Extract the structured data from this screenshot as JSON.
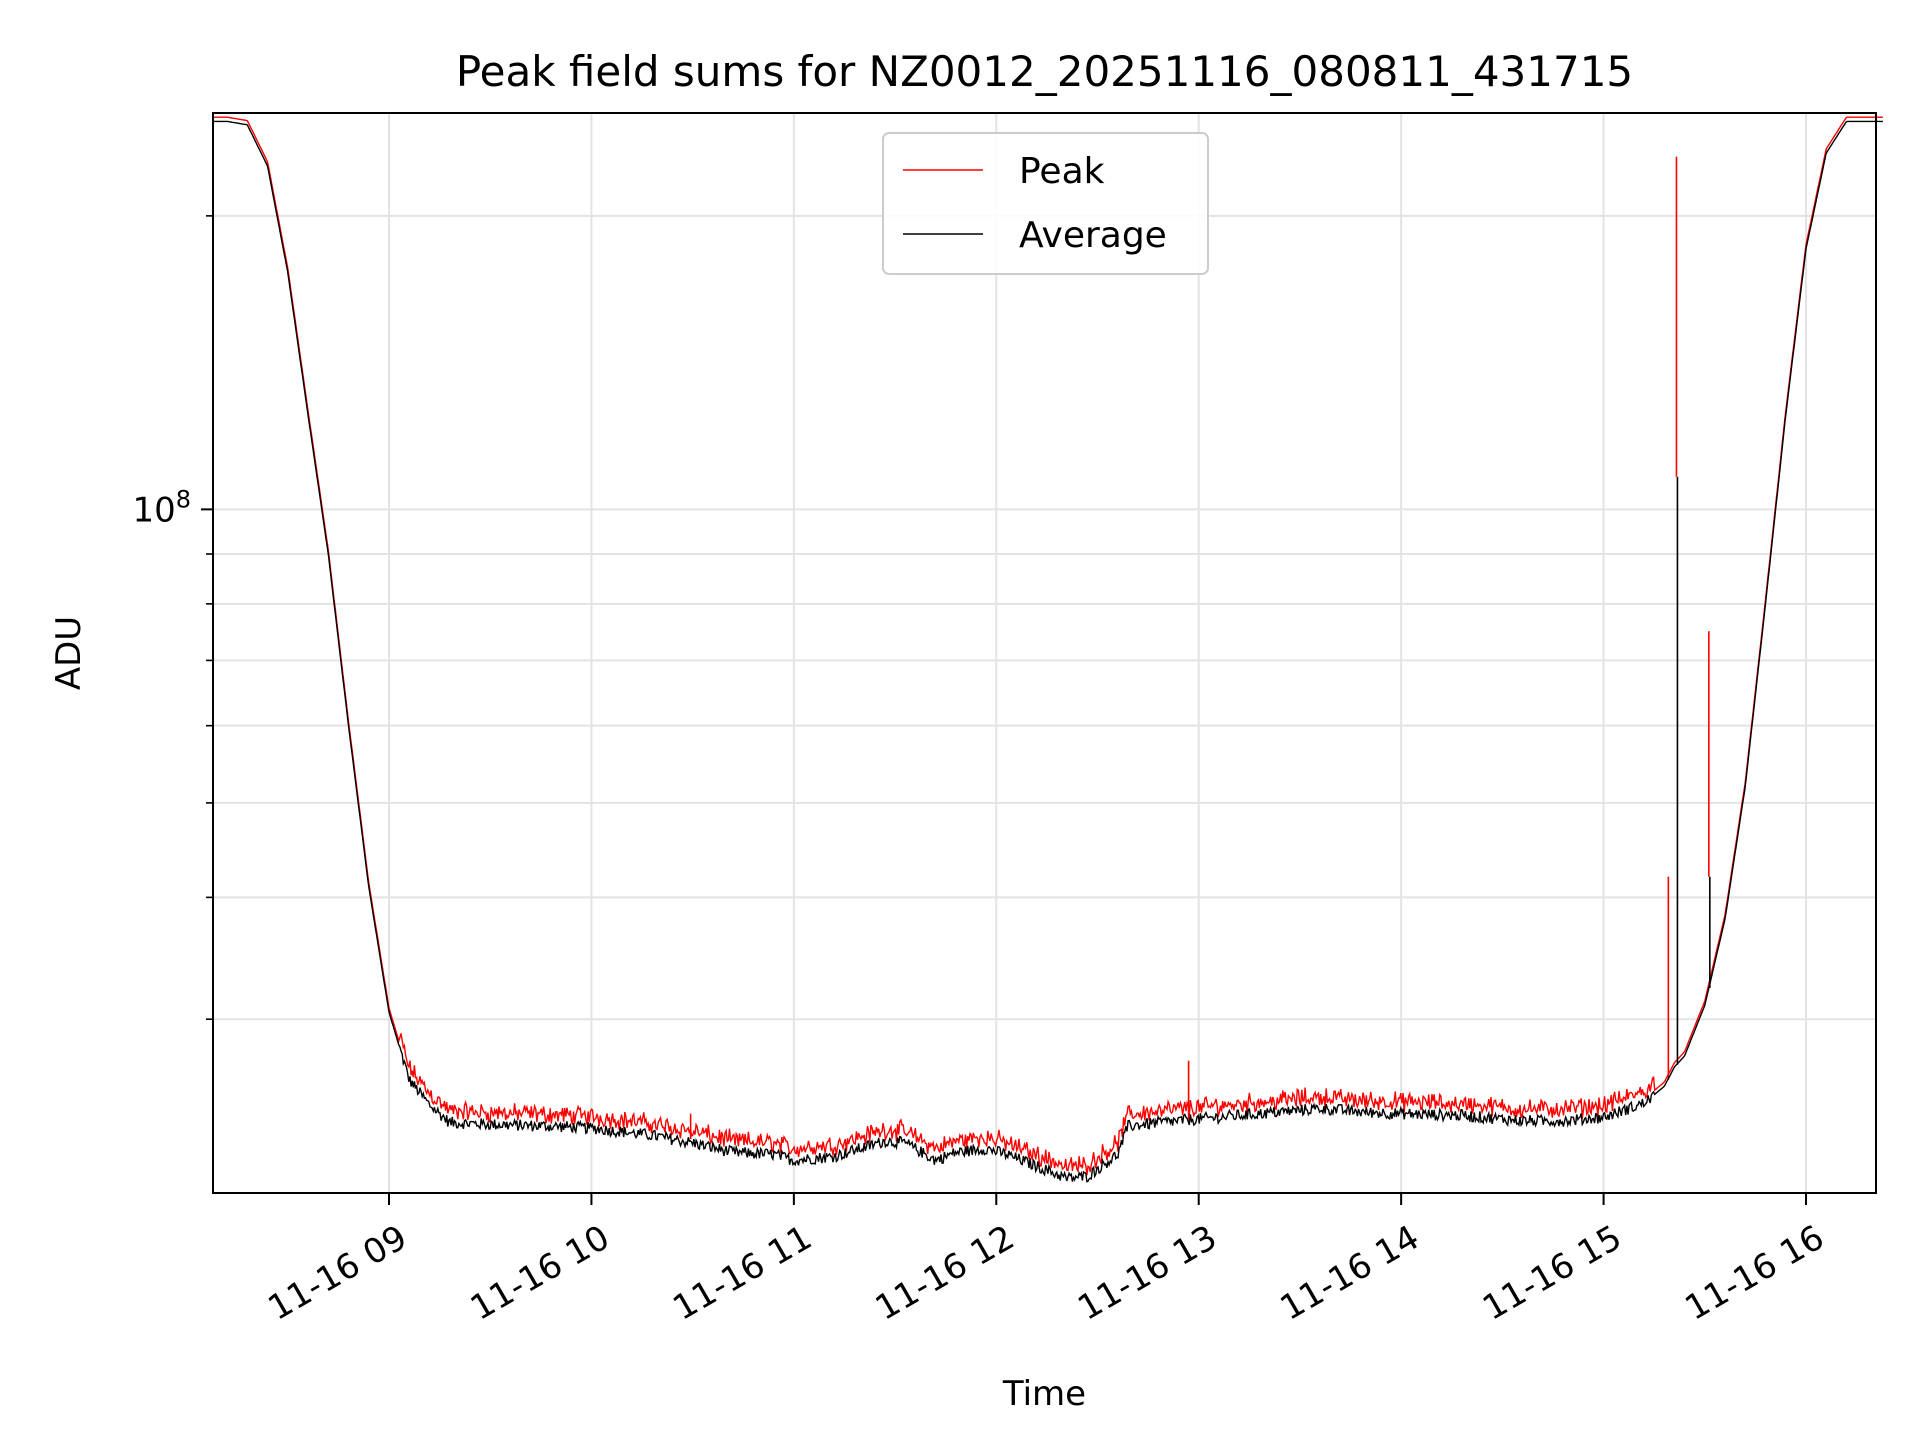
{
  "chart_data": {
    "type": "line",
    "title": "Peak field sums for NZ0012_20251116_080811_431715",
    "xlabel": "Time",
    "ylabel": "ADU",
    "yscale": "log",
    "xlim": [
      "11-16 08:08",
      "11-16 16:23"
    ],
    "ylim": [
      19900000,
      255000000
    ],
    "grid": true,
    "x_tick_labels": [
      "11-16 09",
      "11-16 10",
      "11-16 11",
      "11-16 12",
      "11-16 13",
      "11-16 14",
      "11-16 15",
      "11-16 16"
    ],
    "x_tick_hours": [
      9,
      10,
      11,
      12,
      13,
      14,
      15,
      16
    ],
    "y_tick_labels": [
      {
        "base": "10",
        "exp": "8",
        "value": 100000000
      }
    ],
    "y_minor_ticks": [
      30000000,
      40000000,
      50000000,
      60000000,
      70000000,
      80000000,
      90000000,
      200000000
    ],
    "legend": {
      "placement": "top-center",
      "entries": [
        {
          "label": "Peak",
          "color": "#ff0000"
        },
        {
          "label": "Average",
          "color": "#000000"
        }
      ]
    },
    "series": [
      {
        "name": "Average",
        "color": "#000000",
        "x_hours": [
          8.13,
          8.2,
          8.3,
          8.4,
          8.5,
          8.6,
          8.7,
          8.8,
          8.9,
          9.0,
          9.1,
          9.2,
          9.3,
          9.5,
          9.8,
          10.0,
          10.3,
          10.5,
          10.7,
          10.9,
          11.0,
          11.2,
          11.45,
          11.55,
          11.7,
          11.8,
          11.95,
          12.05,
          12.2,
          12.35,
          12.45,
          12.6,
          12.65,
          12.8,
          13.0,
          13.3,
          13.6,
          13.8,
          14.0,
          14.3,
          14.6,
          14.8,
          15.0,
          15.2,
          15.3,
          15.35,
          15.4,
          15.5,
          15.6,
          15.7,
          15.8,
          15.9,
          16.0,
          16.1,
          16.2,
          16.3,
          16.38
        ],
        "values": [
          250000000,
          250000000,
          248000000,
          225000000,
          175000000,
          125000000,
          90000000,
          60000000,
          41000000,
          30500000,
          26000000,
          24500000,
          23500000,
          23400000,
          23300000,
          23200000,
          22800000,
          22400000,
          21900000,
          21800000,
          21500000,
          21700000,
          22500000,
          22400000,
          21500000,
          21900000,
          22100000,
          21800000,
          21200000,
          20600000,
          20700000,
          21800000,
          23300000,
          23500000,
          23700000,
          24000000,
          24300000,
          24100000,
          24000000,
          23900000,
          23600000,
          23600000,
          23800000,
          24600000,
          25600000,
          26800000,
          27500000,
          31000000,
          38000000,
          52000000,
          80000000,
          125000000,
          185000000,
          232000000,
          250000000,
          250000000,
          250000000
        ]
      },
      {
        "name": "Peak",
        "color": "#ff0000",
        "spikes": [
          {
            "x_hour": 10.49,
            "peak": 24000000,
            "avg": 22600000
          },
          {
            "x_hour": 12.95,
            "peak": 27200000,
            "avg": 23600000
          },
          {
            "x_hour": 15.32,
            "peak": 42000000,
            "avg": 26000000
          },
          {
            "x_hour": 15.36,
            "peak": 230000000,
            "avg": 108000000
          },
          {
            "x_hour": 15.52,
            "peak": 75000000,
            "avg": 42000000
          }
        ]
      }
    ]
  }
}
